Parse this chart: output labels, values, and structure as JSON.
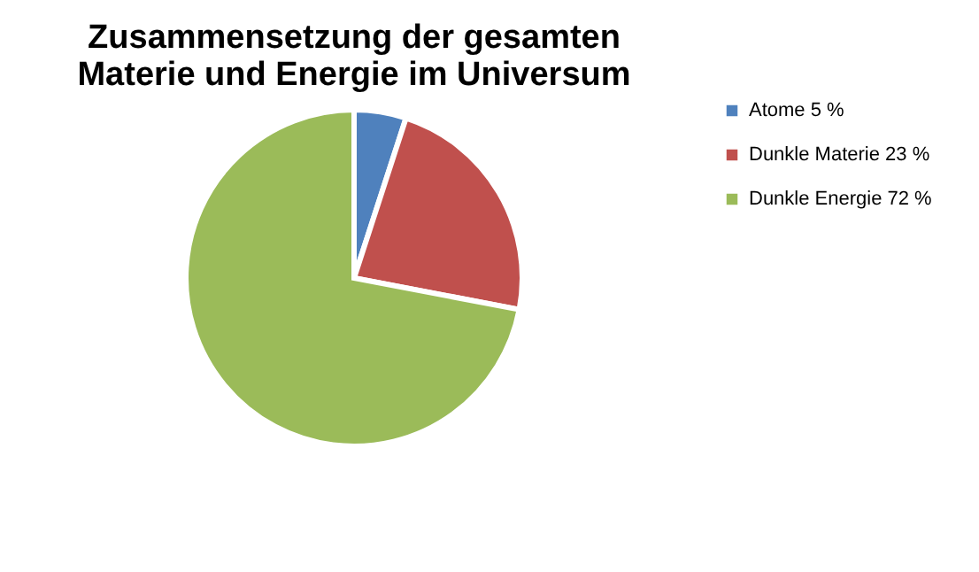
{
  "chart_data": {
    "type": "pie",
    "title": [
      "Zusammensetzung der gesamten",
      "Materie und Energie im Universum"
    ],
    "categories": [
      "Atome 5 %",
      "Dunkle Materie 23 %",
      "Dunkle Energie 72 %"
    ],
    "values": [
      5,
      23,
      72
    ],
    "colors": [
      "#4f81bd",
      "#c0504d",
      "#9bbb59"
    ],
    "legend": "right"
  }
}
